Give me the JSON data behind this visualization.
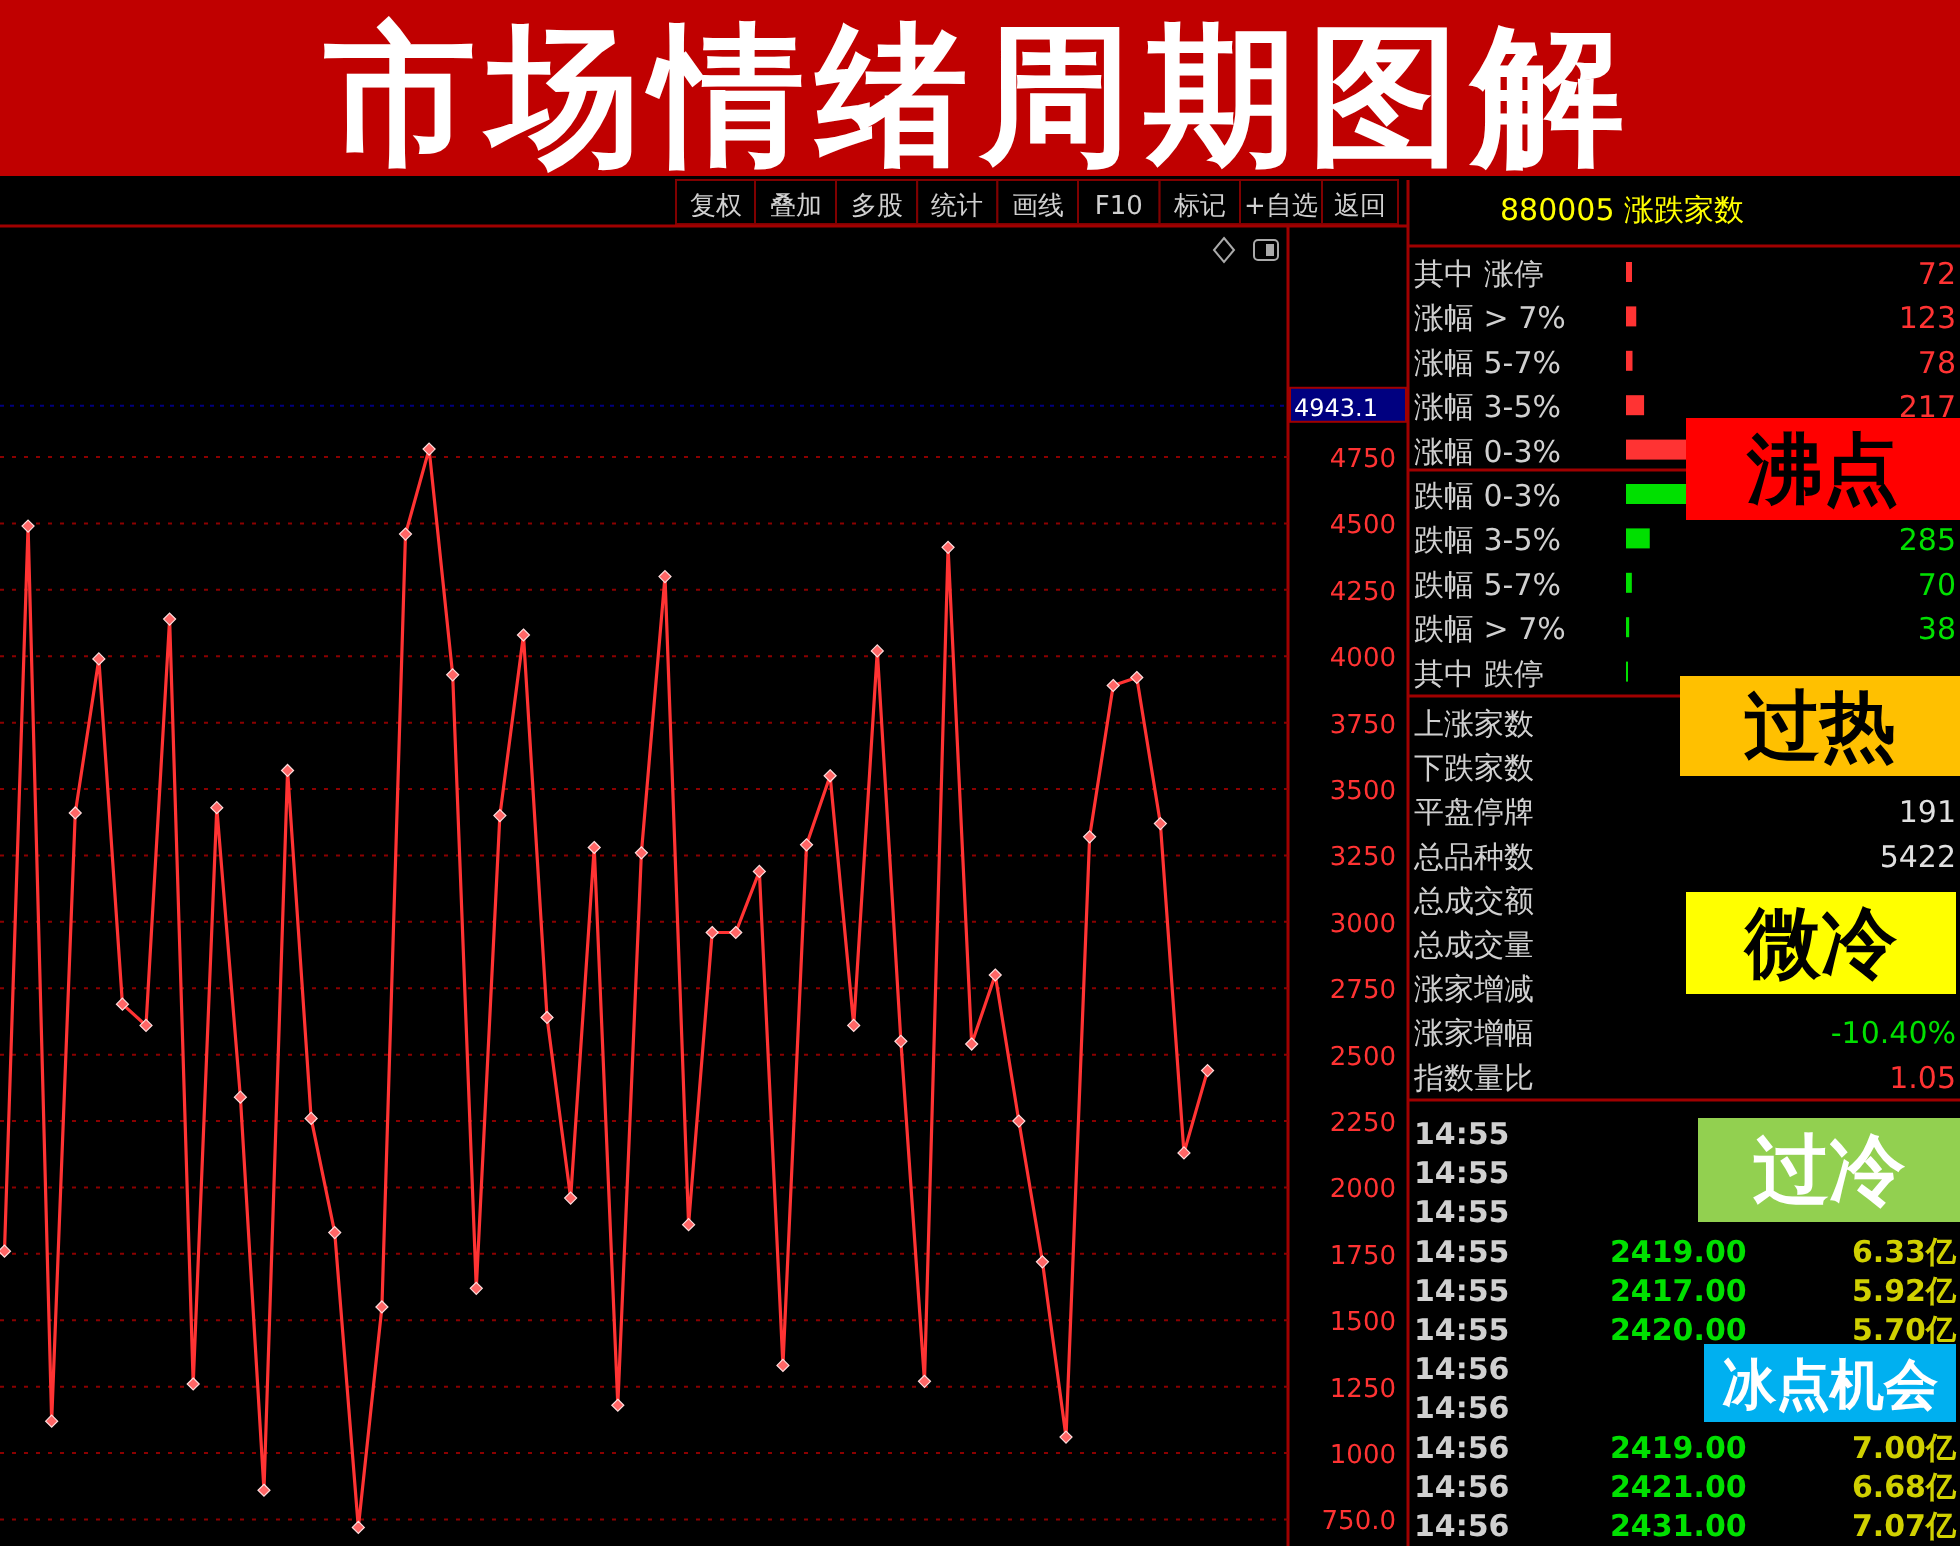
{
  "chart_data": [
    {
      "type": "line",
      "title": "市场情绪周期图解",
      "categories": [
        null,
        null,
        null,
        null,
        null,
        null,
        null,
        null,
        null,
        null,
        null,
        null,
        null,
        null,
        null,
        null,
        null,
        null,
        null,
        null,
        null,
        null,
        null,
        null,
        null,
        null,
        null,
        null,
        null,
        null,
        null,
        null,
        null,
        null,
        null,
        null,
        null,
        null,
        null,
        null,
        null,
        null,
        null,
        null,
        null,
        null,
        null,
        null,
        null,
        null,
        null,
        null
      ],
      "series": [
        {
          "color": "#ff3333",
          "values": [
            1760,
            4490,
            1120,
            3410,
            3990,
            2690,
            2610,
            4140,
            1260,
            3430,
            2340,
            860,
            3570,
            2260,
            1830,
            720,
            1550,
            4460,
            4780,
            3930,
            1620,
            3400,
            4080,
            2640,
            1960,
            3280,
            1180,
            3260,
            4300,
            1860,
            2960,
            2960,
            3190,
            1330,
            3290,
            3550,
            2610,
            4020,
            2550,
            1270,
            4410,
            2540,
            2800,
            2250,
            1720,
            1060,
            3320,
            3890,
            3920,
            3370,
            2130,
            2440
          ]
        }
      ],
      "ylim": [
        650,
        5620
      ],
      "yticks": [
        {
          "value": 750,
          "label": "750.0"
        },
        1000,
        1250,
        1500,
        1750,
        2000,
        2250,
        2500,
        2750,
        3000,
        3250,
        3500,
        3750,
        4000,
        4250,
        4500,
        4750
      ],
      "grid": "y",
      "marker": "diamond",
      "line_style": "solid",
      "ref_lines": [
        {
          "axis": "y",
          "value": 4943.1,
          "label": "4943.1",
          "color": "#000080",
          "line_style": "dotted"
        }
      ],
      "annotations": [
        "复权",
        "叠加",
        "多股",
        "统计",
        "画线",
        "F10",
        "标记",
        "+自选",
        "返回"
      ]
    },
    {
      "type": "bar",
      "orientation": "horizontal",
      "title": "880005 涨跌家数",
      "categories": [
        "其中 涨停",
        "涨幅 > 7%",
        "涨幅 5-7%",
        "涨幅 3-5%",
        "涨幅 0-3%",
        "跌幅 0-3%",
        "跌幅 3-5%",
        "跌幅 5-7%",
        "跌幅 > 7%",
        "其中 跌停"
      ],
      "values": [
        72,
        123,
        78,
        217,
        720,
        720,
        285,
        70,
        38,
        2
      ],
      "colors": [
        "#ff3333",
        "#ff3333",
        "#ff3333",
        "#ff3333",
        "#ff3333",
        "#00e000",
        "#00e000",
        "#00e000",
        "#00e000",
        "#00e000"
      ],
      "value_labels": [
        "72",
        "123",
        "78",
        "217",
        null,
        null,
        "285",
        "70",
        "38",
        null
      ]
    },
    {
      "type": "other",
      "cell_labels": [
        [
          "上涨家数",
          null
        ],
        [
          "下跌家数",
          null
        ],
        [
          "平盘停牌",
          "191"
        ],
        [
          "总品种数",
          "5422"
        ],
        [
          "总成交额",
          null
        ],
        [
          "总成交量",
          null
        ],
        [
          "涨家增减",
          null
        ],
        [
          "涨家增幅",
          "-10.40%"
        ],
        [
          "指数量比",
          "1.05"
        ]
      ],
      "colors": [
        null,
        null,
        "#e0e0e0",
        "#e0e0e0",
        null,
        null,
        null,
        "#00e000",
        "#ff3333"
      ]
    },
    {
      "type": "other",
      "cell_labels": [
        [
          "14:55",
          null,
          null
        ],
        [
          "14:55",
          null,
          null
        ],
        [
          "14:55",
          null,
          null
        ],
        [
          "14:55",
          "2419.00",
          "6.33亿"
        ],
        [
          "14:55",
          "2417.00",
          "5.92亿"
        ],
        [
          "14:55",
          "2420.00",
          "5.70亿"
        ],
        [
          "14:56",
          null,
          null
        ],
        [
          "14:56",
          null,
          null
        ],
        [
          "14:56",
          "2419.00",
          "7.00亿"
        ],
        [
          "14:56",
          "2421.00",
          "6.68亿"
        ],
        [
          "14:56",
          "2431.00",
          "7.07亿"
        ]
      ]
    },
    {
      "type": "other",
      "categories": [
        "沸点",
        "过热",
        "微冷",
        "过冷",
        "冰点机会"
      ],
      "colors": [
        "#ff0000",
        "#ffc000",
        "#ffff00",
        "#92d050",
        "#00b0f0"
      ]
    }
  ]
}
